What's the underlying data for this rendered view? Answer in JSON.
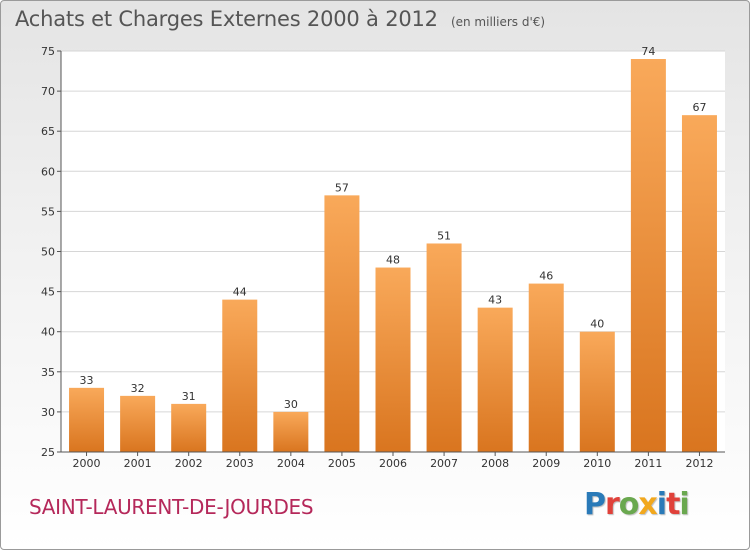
{
  "header": {
    "title": "Achats et Charges Externes 2000 à 2012",
    "subtitle": "(en milliers d'€)"
  },
  "footer": {
    "commune": "SAINT-LAURENT-DE-JOURDES",
    "logo": "Proxiti",
    "logo_colors": [
      "#2a7ab8",
      "#e0413a",
      "#6aa84f",
      "#f2a81d",
      "#2a7ab8",
      "#e0413a",
      "#6aa84f"
    ]
  },
  "colors": {
    "bar_light": "#f9a95a",
    "bar_dark": "#d9751f",
    "grid": "#d6d6d6",
    "axis": "#555555",
    "commune": "#b5285a"
  },
  "chart_data": {
    "type": "bar",
    "title": "Achats et Charges Externes 2000 à 2012",
    "subtitle": "(en milliers d'€)",
    "xlabel": "",
    "ylabel": "",
    "categories": [
      "2000",
      "2001",
      "2002",
      "2003",
      "2004",
      "2005",
      "2006",
      "2007",
      "2008",
      "2009",
      "2010",
      "2011",
      "2012"
    ],
    "values": [
      33,
      32,
      31,
      44,
      30,
      57,
      48,
      51,
      43,
      46,
      40,
      74,
      67
    ],
    "ylim": [
      25,
      75
    ],
    "yticks": [
      25,
      30,
      35,
      40,
      45,
      50,
      55,
      60,
      65,
      70,
      75
    ],
    "grid": true,
    "data_labels": true
  }
}
